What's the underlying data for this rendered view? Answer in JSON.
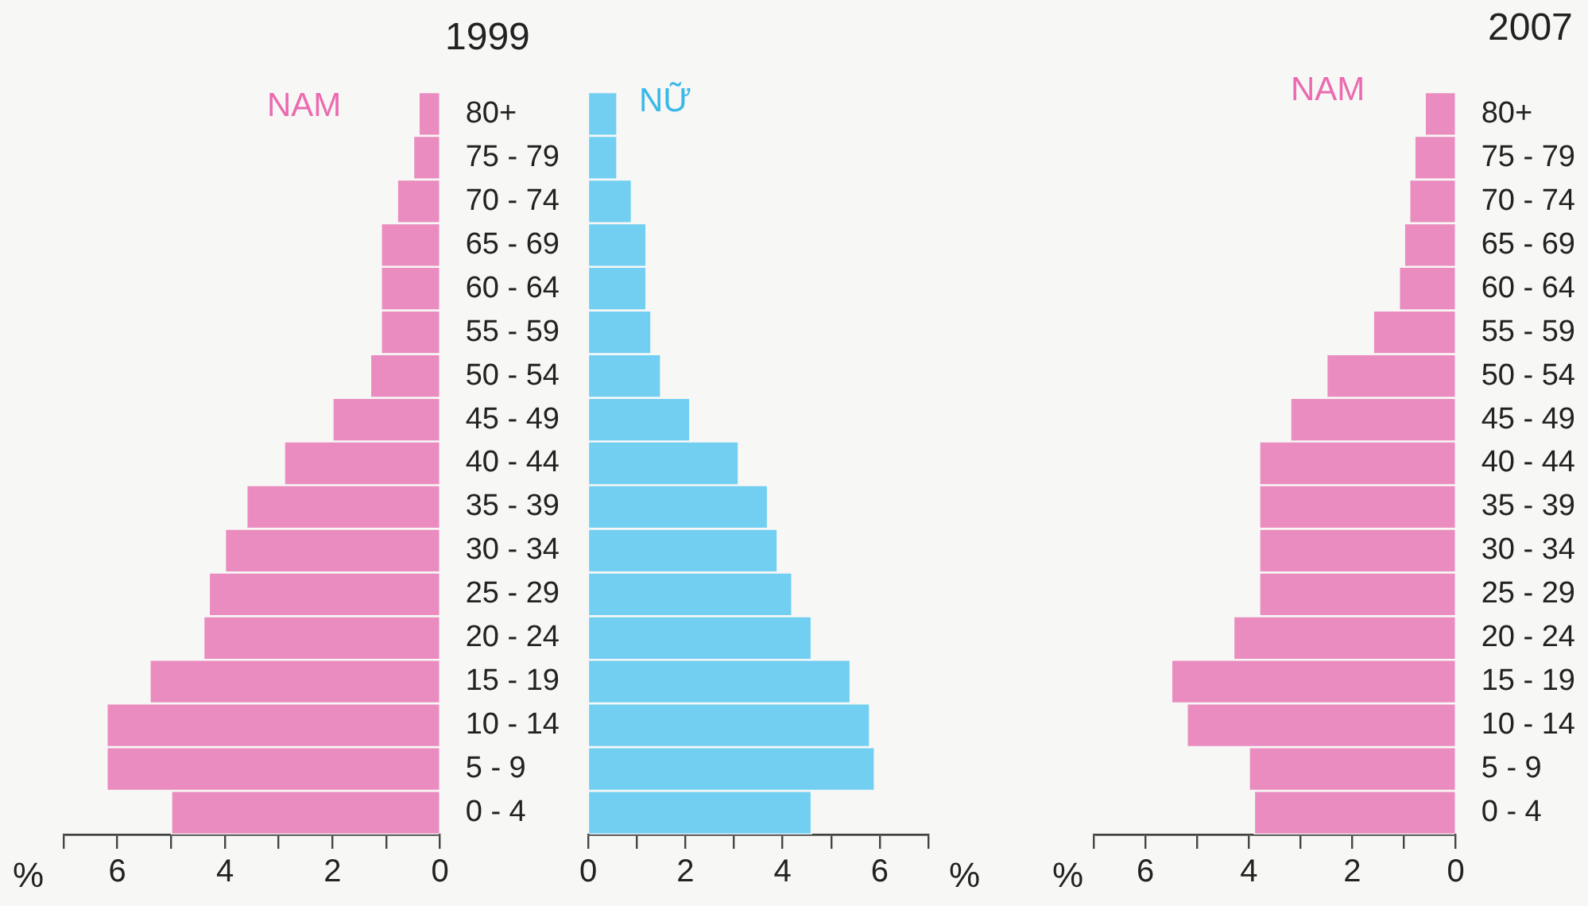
{
  "chart_data": [
    {
      "type": "bar",
      "orientation": "horizontal",
      "title": "1999",
      "xlabel": "%",
      "categories": [
        "80+",
        "75 - 79",
        "70 - 74",
        "65 - 69",
        "60 - 64",
        "55 - 59",
        "50 - 54",
        "45 - 49",
        "40 - 44",
        "35 - 39",
        "30 - 34",
        "25 - 29",
        "20 - 24",
        "15 - 19",
        "10 - 14",
        "5 - 9",
        "0 - 4"
      ],
      "series": [
        {
          "name": "NAM",
          "color": "#ea8cbf",
          "values": [
            0.4,
            0.5,
            0.8,
            1.1,
            1.1,
            1.1,
            1.3,
            2.0,
            2.9,
            3.6,
            4.0,
            4.3,
            4.4,
            5.4,
            6.2,
            6.2,
            5.0
          ]
        }
      ],
      "xlim": [
        7,
        0
      ],
      "xticks": [
        {
          "value": 7,
          "label": null
        },
        6,
        {
          "value": 5,
          "label": null
        },
        4,
        {
          "value": 3,
          "label": null
        },
        2,
        {
          "value": 1,
          "label": null
        },
        0
      ],
      "legend": false
    },
    {
      "type": "bar",
      "orientation": "horizontal",
      "xlabel": "%",
      "categories": [
        null,
        null,
        null,
        null,
        null,
        null,
        null,
        null,
        null,
        null,
        null,
        null,
        null,
        null,
        null,
        null,
        null
      ],
      "series": [
        {
          "name": "NỮ",
          "color": "#72cff2",
          "values": [
            0.6,
            0.6,
            0.9,
            1.2,
            1.2,
            1.3,
            1.5,
            2.1,
            3.1,
            3.7,
            3.9,
            4.2,
            4.6,
            5.4,
            5.8,
            5.9,
            4.6
          ]
        }
      ],
      "xlim": [
        0,
        7
      ],
      "xticks": [
        0,
        {
          "value": 1,
          "label": null
        },
        2,
        {
          "value": 3,
          "label": null
        },
        4,
        {
          "value": 5,
          "label": null
        },
        6,
        {
          "value": 7,
          "label": null
        }
      ],
      "tick_labels": "x",
      "legend": false
    },
    {
      "type": "bar",
      "orientation": "horizontal",
      "title": "2007",
      "xlabel": "%",
      "categories": [
        "80+",
        "75 - 79",
        "70 - 74",
        "65 - 69",
        "60 - 64",
        "55 - 59",
        "50 - 54",
        "45 - 49",
        "40 - 44",
        "35 - 39",
        "30 - 34",
        "25 - 29",
        "20 - 24",
        "15 - 19",
        "10 - 14",
        "5 - 9",
        "0 - 4"
      ],
      "series": [
        {
          "name": "NAM",
          "color": "#ea8cbf",
          "values": [
            0.6,
            0.8,
            0.9,
            1.0,
            1.1,
            1.6,
            2.5,
            3.2,
            3.8,
            3.8,
            3.8,
            3.8,
            4.3,
            5.5,
            5.2,
            4.0,
            3.9
          ]
        }
      ],
      "xlim": [
        7,
        0
      ],
      "xticks": [
        {
          "value": 7,
          "label": null
        },
        6,
        {
          "value": 5,
          "label": null
        },
        4,
        {
          "value": 3,
          "label": null
        },
        2,
        {
          "value": 1,
          "label": null
        },
        0
      ],
      "legend": false
    }
  ]
}
